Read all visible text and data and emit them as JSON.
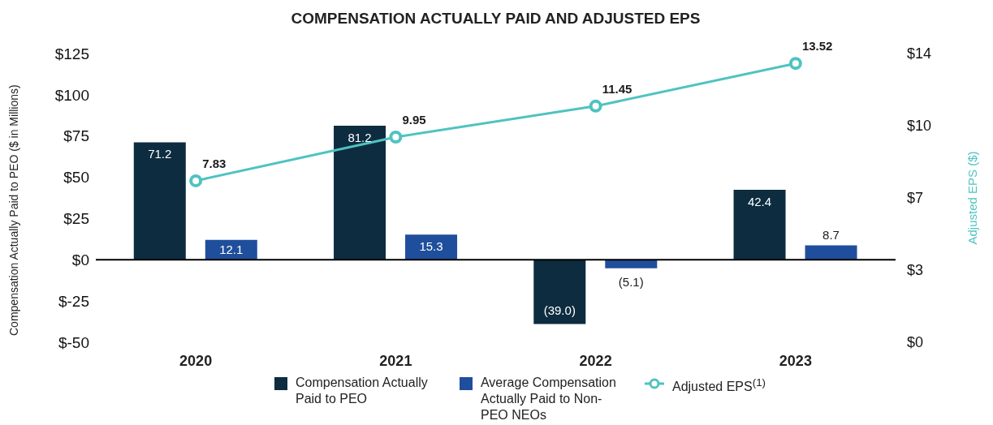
{
  "chart_data": {
    "type": "bar",
    "title": "COMPENSATION ACTUALLY PAID AND ADJUSTED EPS",
    "ylabel": "Compensation Actually Paid to PEO ($ in Millions)",
    "y2label": "Adjusted EPS ($)",
    "categories": [
      "2020",
      "2021",
      "2022",
      "2023"
    ],
    "series": [
      {
        "name": "Compensation Actually Paid to PEO",
        "type": "bar",
        "color": "#0d2c40",
        "values": [
          71.2,
          81.2,
          -39.0,
          42.4
        ],
        "value_labels": [
          "71.2",
          "81.2",
          "(39.0)",
          "42.4"
        ]
      },
      {
        "name": "Average Compensation Actually Paid to Non-PEO NEOs",
        "type": "bar",
        "color": "#1f4e9c",
        "values": [
          12.1,
          15.3,
          -5.1,
          8.7
        ],
        "value_labels": [
          "12.1",
          "15.3",
          "(5.1)",
          "8.7"
        ]
      },
      {
        "name": "Adjusted EPS$^{(1)}$",
        "type": "line",
        "axis": "y2",
        "color": "#4fc3c0",
        "values": [
          7.83,
          9.95,
          11.45,
          13.52
        ],
        "value_labels": [
          "7.83",
          "9.95",
          "11.45",
          "13.52"
        ],
        "marker": "circle",
        "line_style": "solid"
      }
    ],
    "ylim": [
      -50,
      125
    ],
    "yticks": [
      {
        "value": -50,
        "label": "$-50"
      },
      {
        "value": -25,
        "label": "$-25"
      },
      {
        "value": 0,
        "label": "$0"
      },
      {
        "value": 25,
        "label": "$25"
      },
      {
        "value": 50,
        "label": "$50"
      },
      {
        "value": 75,
        "label": "$75"
      },
      {
        "value": 100,
        "label": "$100"
      },
      {
        "value": 125,
        "label": "$125"
      }
    ],
    "y2lim": [
      0,
      14
    ],
    "y2ticks": [
      {
        "value": 0,
        "label": "$0"
      },
      {
        "value": 3.5,
        "label": "$3"
      },
      {
        "value": 7,
        "label": "$7"
      },
      {
        "value": 10.5,
        "label": "$10"
      },
      {
        "value": 14,
        "label": "$14"
      }
    ],
    "ref_lines": [
      {
        "axis": "y",
        "value": 0,
        "color": "#000000"
      }
    ],
    "grid": false,
    "legend": "bottom"
  }
}
